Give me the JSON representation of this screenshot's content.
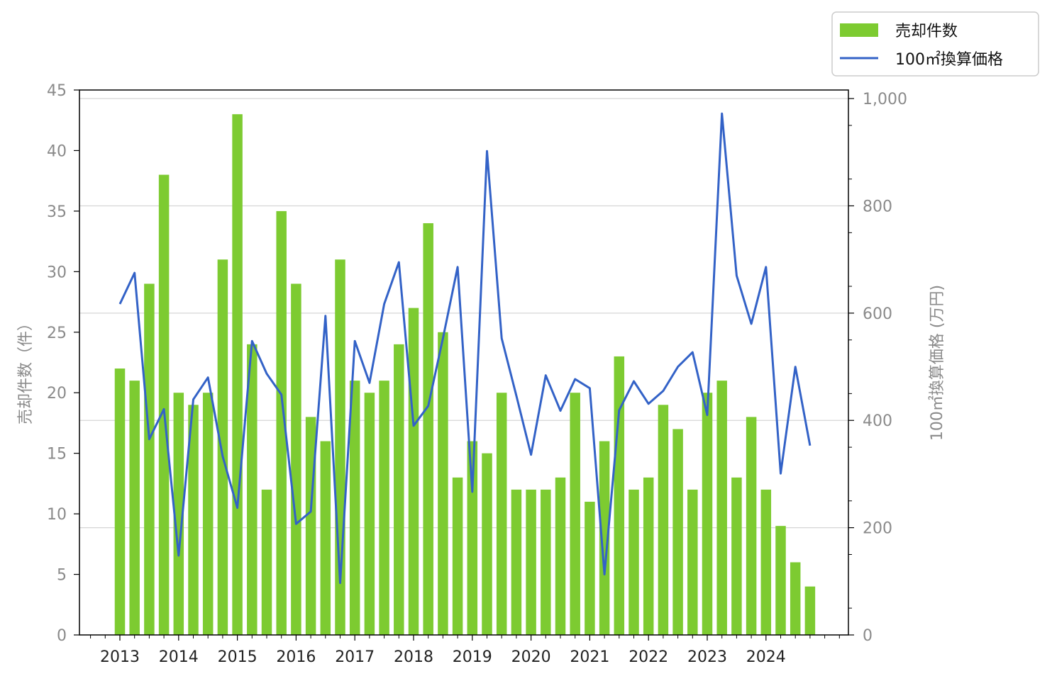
{
  "chart_data": {
    "type": "bar+line",
    "title": "",
    "xlabel": "",
    "ylabel_left": "売却件数（件）",
    "ylabel_right": "100㎡換算価格 (万円)",
    "x_tick_labels": [
      "2013",
      "2014",
      "2015",
      "2016",
      "2017",
      "2018",
      "2019",
      "2020",
      "2021",
      "2022",
      "2023",
      "2024"
    ],
    "quarters_per_year": 4,
    "ylim_left": [
      0,
      45
    ],
    "yticks_left": [
      "0",
      "5",
      "10",
      "15",
      "20",
      "25",
      "30",
      "35",
      "40",
      "45"
    ],
    "ylim_right": [
      0,
      1016
    ],
    "yticks_right": [
      "0",
      "200",
      "400",
      "600",
      "800",
      "1,000"
    ],
    "grid": "horizontal at right-axis major ticks",
    "legend_placement": "top-right, outside plot",
    "colors": {
      "bar": "#7dcb31",
      "line": "#3362c7"
    },
    "series": [
      {
        "name": "売却件数",
        "axis": "left",
        "kind": "bar",
        "values": [
          22,
          21,
          29,
          38,
          20,
          19,
          20,
          31,
          43,
          24,
          12,
          35,
          29,
          18,
          16,
          31,
          21,
          20,
          21,
          24,
          27,
          34,
          25,
          13,
          16,
          15,
          20,
          12,
          12,
          12,
          13,
          20,
          11,
          16,
          23,
          12,
          13,
          19,
          17,
          12,
          20,
          21,
          13,
          18,
          12,
          9,
          6,
          4
        ]
      },
      {
        "name": "100㎡換算価格",
        "axis": "right",
        "kind": "line",
        "values": [
          617,
          675,
          365,
          421,
          148,
          439,
          480,
          333,
          237,
          548,
          487,
          448,
          207,
          230,
          595,
          97,
          548,
          470,
          617,
          695,
          390,
          427,
          553,
          686,
          267,
          902,
          553,
          446,
          336,
          484,
          418,
          477,
          460,
          113,
          419,
          473,
          431,
          455,
          500,
          527,
          410,
          972,
          670,
          580,
          686,
          301,
          500,
          353
        ]
      }
    ]
  }
}
